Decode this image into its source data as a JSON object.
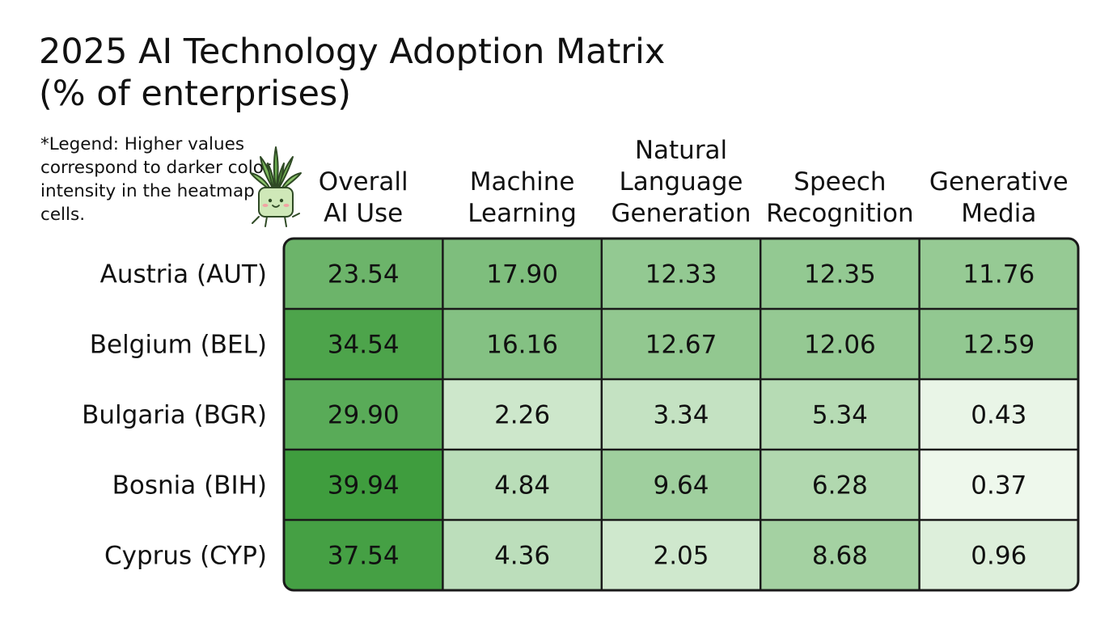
{
  "title_line1": "2025 AI Technology Adoption Matrix",
  "title_line2": "(% of enterprises)",
  "legend_note": "*Legend: Higher values correspond to darker color intensity in the heatmap cells.",
  "colors": {
    "cell_min": "#eef8ec",
    "cell_max": "#3f9d3e",
    "grid_line": "#1a1a1a",
    "text": "#111111"
  },
  "chart_data": {
    "type": "heatmap",
    "title": "2025 AI Technology Adoption Matrix (% of enterprises)",
    "columns": [
      [
        "Overall",
        "AI Use"
      ],
      [
        "Machine",
        "Learning"
      ],
      [
        "Natural",
        "Language",
        "Generation"
      ],
      [
        "Speech",
        "Recognition"
      ],
      [
        "Generative",
        "Media"
      ]
    ],
    "rows": [
      "Austria (AUT)",
      "Belgium (BEL)",
      "Bulgaria (BGR)",
      "Bosnia (BIH)",
      "Cyprus (CYP)"
    ],
    "values": [
      [
        23.54,
        17.9,
        12.33,
        12.35,
        11.76
      ],
      [
        34.54,
        16.16,
        12.67,
        12.06,
        12.59
      ],
      [
        29.9,
        2.26,
        3.34,
        5.34,
        0.43
      ],
      [
        39.94,
        4.84,
        9.64,
        6.28,
        0.37
      ],
      [
        37.54,
        4.36,
        2.05,
        8.68,
        0.96
      ]
    ],
    "value_labels": [
      [
        "23.54",
        "17.90",
        "12.33",
        "12.35",
        "11.76"
      ],
      [
        "34.54",
        "16.16",
        "12.67",
        "12.06",
        "12.59"
      ],
      [
        "29.90",
        "2.26",
        "3.34",
        "5.34",
        "0.43"
      ],
      [
        "39.94",
        "4.84",
        "9.64",
        "6.28",
        "0.37"
      ],
      [
        "37.54",
        "4.36",
        "2.05",
        "8.68",
        "0.96"
      ]
    ]
  }
}
